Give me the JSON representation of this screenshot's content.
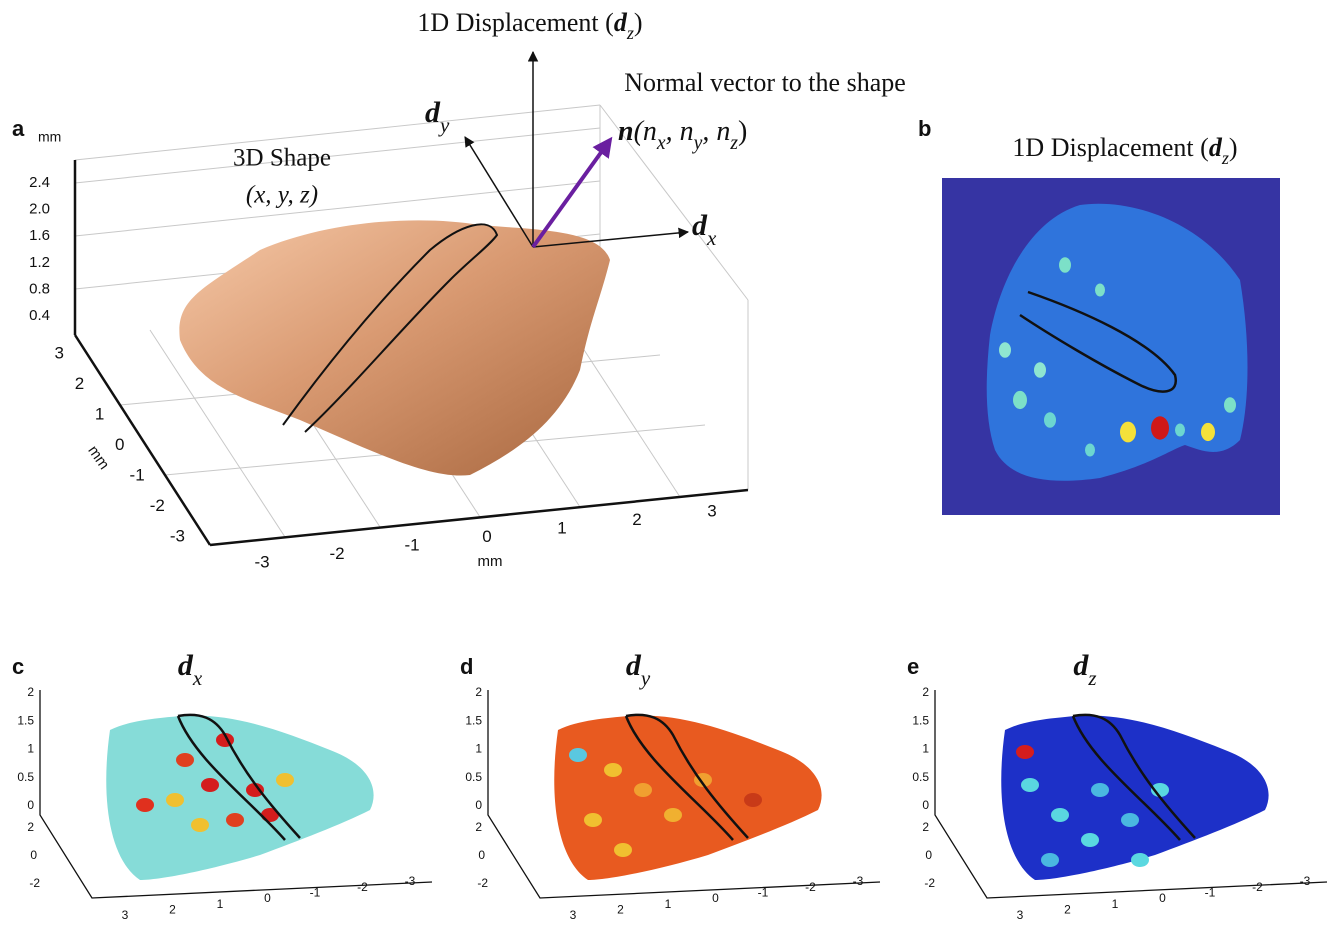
{
  "panel_a": {
    "label": "a",
    "z_unit": "mm",
    "z_ticks": [
      "2.4",
      "2.0",
      "1.6",
      "1.2",
      "0.8",
      "0.4"
    ],
    "y_ticks": [
      "3",
      "2",
      "1",
      "0",
      "-1",
      "-2",
      "-3"
    ],
    "y_unit": "mm",
    "x_ticks": [
      "-3",
      "-2",
      "-1",
      "0",
      "1",
      "2",
      "3"
    ],
    "x_unit": "mm",
    "shape_label": "3D Shape",
    "shape_coords": "(x, y, z)",
    "axis_up": [
      {
        "text": "1D Displacement (",
        "style": "plain"
      },
      {
        "text": "d",
        "style": "bold"
      },
      {
        "text": "z",
        "style": "sub"
      },
      {
        "text": ")",
        "style": "plain"
      }
    ],
    "axis_y": [
      {
        "text": "d",
        "style": "bold"
      },
      {
        "text": "y",
        "style": "sub"
      }
    ],
    "axis_x": [
      {
        "text": "d",
        "style": "bold"
      },
      {
        "text": "x",
        "style": "sub"
      }
    ],
    "normal_caption": "Normal vector to the shape",
    "normal_vector": [
      {
        "text": "n",
        "style": "bold"
      },
      {
        "text": "(n",
        "style": "italic"
      },
      {
        "text": "x",
        "style": "sub"
      },
      {
        "text": ", n",
        "style": "italic"
      },
      {
        "text": "y",
        "style": "sub"
      },
      {
        "text": ", n",
        "style": "italic"
      },
      {
        "text": "z",
        "style": "sub"
      },
      {
        "text": ")",
        "style": "plain"
      }
    ]
  },
  "panel_b": {
    "label": "b",
    "title": [
      {
        "text": "1D Displacement (",
        "style": "plain"
      },
      {
        "text": "d",
        "style": "bold"
      },
      {
        "text": "z",
        "style": "sub"
      },
      {
        "text": ")",
        "style": "plain"
      }
    ]
  },
  "small_panels": [
    {
      "label": "c",
      "title": [
        {
          "text": "d",
          "style": "bold"
        },
        {
          "text": "x",
          "style": "sub"
        }
      ],
      "z_ticks": [
        "2",
        "1.5",
        "1",
        "0.5",
        "0"
      ],
      "y_ticks": [
        "2",
        "0",
        "-2"
      ],
      "x_ticks": [
        "3",
        "2",
        "1",
        "0",
        "-1",
        "-2",
        "-3"
      ]
    },
    {
      "label": "d",
      "title": [
        {
          "text": "d",
          "style": "bold"
        },
        {
          "text": "y",
          "style": "sub"
        }
      ],
      "z_ticks": [
        "2",
        "1.5",
        "1",
        "0.5",
        "0"
      ],
      "y_ticks": [
        "2",
        "0",
        "-2"
      ],
      "x_ticks": [
        "3",
        "2",
        "1",
        "0",
        "-1",
        "-2",
        "-3"
      ]
    },
    {
      "label": "e",
      "title": [
        {
          "text": "d",
          "style": "bold"
        },
        {
          "text": "z",
          "style": "sub"
        }
      ],
      "z_ticks": [
        "2",
        "1.5",
        "1",
        "0.5",
        "0"
      ],
      "y_ticks": [
        "2",
        "0",
        "-2"
      ],
      "x_ticks": [
        "3",
        "2",
        "1",
        "0",
        "-1",
        "-2",
        "-3"
      ]
    }
  ]
}
